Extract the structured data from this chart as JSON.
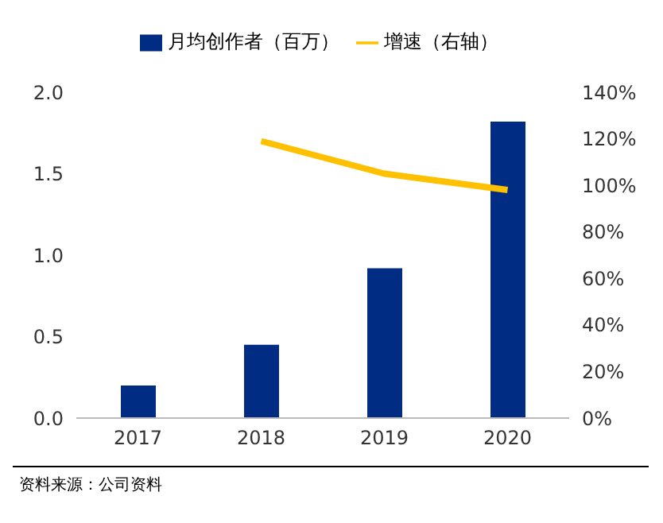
{
  "chart_data": {
    "type": "bar",
    "categories": [
      "2017",
      "2018",
      "2019",
      "2020"
    ],
    "series": [
      {
        "name": "月均创作者（百万）",
        "color": "#002d83",
        "values": [
          0.2,
          0.45,
          0.92,
          1.82
        ]
      },
      {
        "name": "增速（右轴）",
        "type": "line",
        "axis": "y2",
        "color": "#ffc000",
        "values": [
          null,
          119,
          105,
          98
        ]
      }
    ],
    "ylim": [
      0,
      2
    ],
    "yticks": [
      {
        "value": 0,
        "label": "0.0"
      },
      0.5,
      {
        "value": 1,
        "label": "1.0"
      },
      1.5,
      {
        "value": 2,
        "label": "2.0"
      }
    ],
    "y2lim": [
      0,
      140
    ],
    "y2ticks": [
      {
        "value": 0,
        "label": "0%"
      },
      {
        "value": 20,
        "label": "20%"
      },
      {
        "value": 40,
        "label": "40%"
      },
      {
        "value": 60,
        "label": "60%"
      },
      {
        "value": 80,
        "label": "80%"
      },
      {
        "value": 100,
        "label": "100%"
      },
      {
        "value": 120,
        "label": "120%"
      },
      {
        "value": 140,
        "label": "140%"
      }
    ],
    "legend": "top",
    "marker": "none",
    "annotations": [
      "资料来源：公司资料"
    ]
  }
}
